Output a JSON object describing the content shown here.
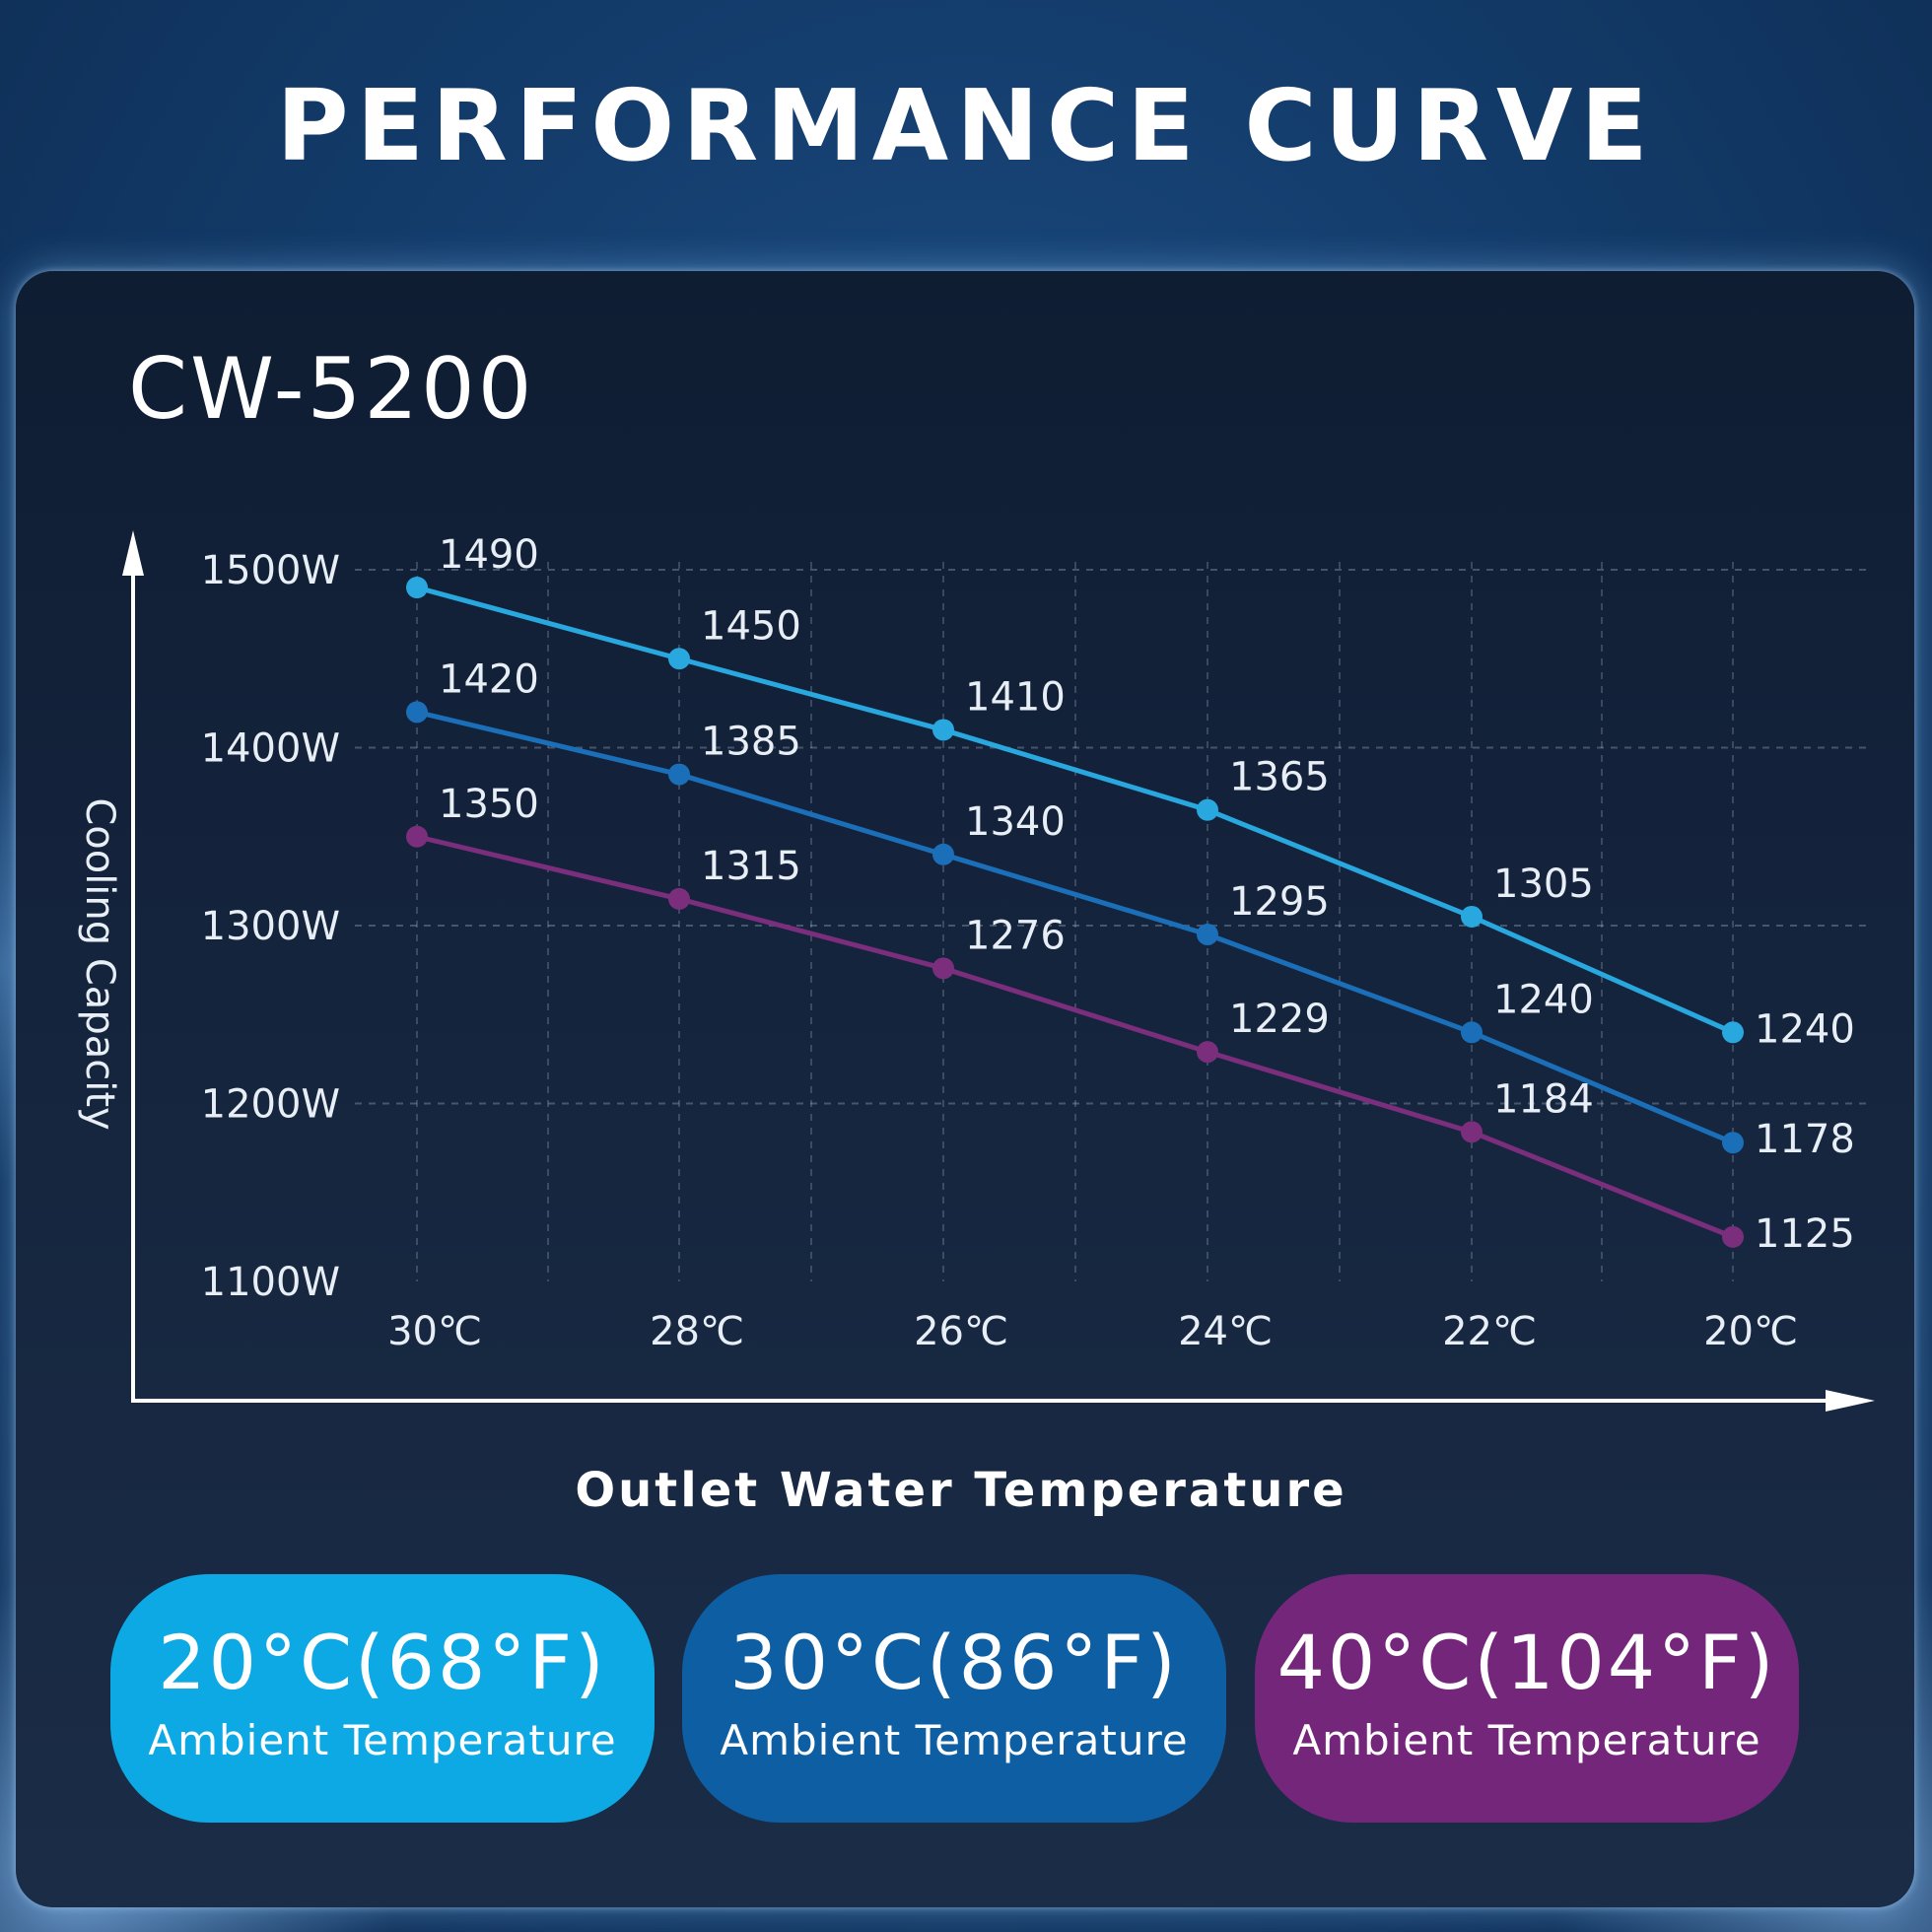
{
  "header": {
    "title": "PERFORMANCE CURVE"
  },
  "panel": {
    "model": "CW-5200"
  },
  "chart_data": {
    "type": "line",
    "ylabel": "Cooling Capacity",
    "xlabel": "Outlet Water Temperature",
    "categories": [
      "30℃",
      "28℃",
      "26℃",
      "24℃",
      "22℃",
      "20℃"
    ],
    "yticks": [
      1500,
      1400,
      1300,
      1200,
      1100
    ],
    "ytick_labels": [
      "1500W",
      "1400W",
      "1300W",
      "1200W",
      "1100W"
    ],
    "ylim": [
      1100,
      1500
    ],
    "grid": true,
    "series": [
      {
        "name": "20°C(68°F) Ambient Temperature",
        "color": "#29a8df",
        "values": [
          1490,
          1450,
          1410,
          1365,
          1305,
          1240
        ],
        "labels": [
          "1490",
          "1450",
          "1410",
          "1365",
          "1305",
          "1240"
        ]
      },
      {
        "name": "30°C(86°F) Ambient Temperature",
        "color": "#1a6fb8",
        "values": [
          1420,
          1385,
          1340,
          1295,
          1240,
          1178
        ],
        "labels": [
          "1420",
          "1385",
          "1340",
          "1295",
          "1240",
          "1178"
        ]
      },
      {
        "name": "40°C(104°F) Ambient Temperature",
        "color": "#7a2e7c",
        "values": [
          1350,
          1315,
          1276,
          1229,
          1184,
          1125
        ],
        "labels": [
          "1350",
          "1315",
          "1276",
          "1229",
          "1184",
          "1125"
        ]
      }
    ]
  },
  "legend": [
    {
      "temp": "20°C(68°F)",
      "sub": "Ambient Temperature",
      "color": "#0ca9e4"
    },
    {
      "temp": "30°C(86°F)",
      "sub": "Ambient Temperature",
      "color": "#0d5ea3"
    },
    {
      "temp": "40°C(104°F)",
      "sub": "Ambient Temperature",
      "color": "#74267a"
    }
  ]
}
